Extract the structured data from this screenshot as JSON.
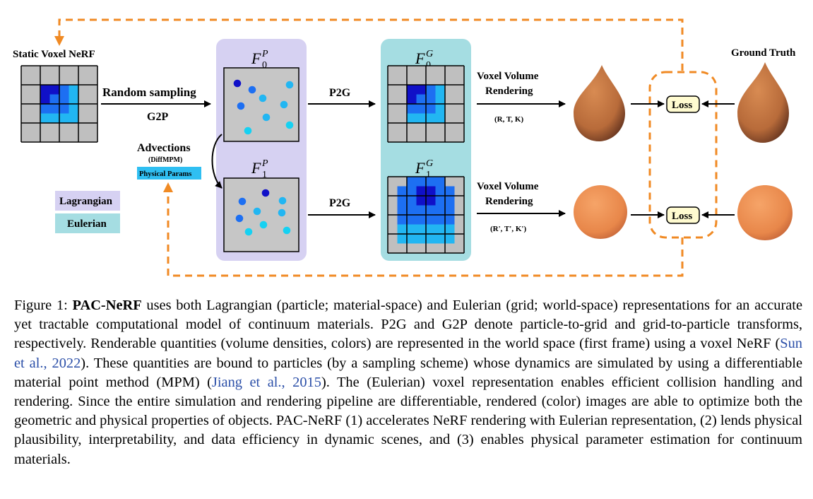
{
  "figure": {
    "static_voxel_title": "Static Voxel NeRF",
    "random_sampling": "Random sampling",
    "g2p": "G2P",
    "advections": "Advections",
    "diffmpm": "(DiffMPM)",
    "physical_params": "Physical Params",
    "legend": {
      "lagrangian": "Lagrangian",
      "eulerian": "Eulerian"
    },
    "f0p": {
      "base": "F",
      "sup": "P",
      "sub": "0"
    },
    "f1p": {
      "base": "F",
      "sup": "P",
      "sub": "1"
    },
    "f0g": {
      "base": "F",
      "sup": "G",
      "sub": "0"
    },
    "f1g": {
      "base": "F",
      "sup": "G",
      "sub": "1"
    },
    "p2g_top": "P2G",
    "p2g_bottom": "P2G",
    "render_top": {
      "line1": "Voxel Volume",
      "line2": "Rendering",
      "params": "(R, T, K)"
    },
    "render_bottom": {
      "line1": "Voxel Volume",
      "line2": "Rendering",
      "params": "(R', T', K')"
    },
    "loss_top": "Loss",
    "loss_bottom": "Loss",
    "ground_truth": "Ground Truth",
    "colors": {
      "lagrangian_bg": "#d6d1f2",
      "eulerian_bg": "#a5dde2",
      "dashed_orange": "#f08a24",
      "grid_gray": "#bfbfbf",
      "blue_dark": "#1010c8",
      "blue_mid": "#1d6ff2",
      "blue_light": "#22b6f2",
      "particle_light": "#16d1f2",
      "loss_fill": "#fffbd0",
      "object_brown": "#b86b3a",
      "object_orange": "#e8874a"
    }
  },
  "caption": {
    "label": "Figure 1: ",
    "name": "PAC-NeRF",
    "t1": " uses both Lagrangian (particle; material-space) and Eulerian (grid; world-space) representations for an accurate yet tractable computational model of continuum materials. P2G and G2P denote particle-to-grid and grid-to-particle transforms, respectively. Renderable quantities (volume densities, colors) are represented in the world space (first frame) using a voxel NeRF (",
    "cite1": "Sun et al., 2022",
    "t2": "). These quantities are bound to particles (by a sampling scheme) whose dynamics are simulated by using a differentiable material point method (MPM) (",
    "cite2": "Jiang et al., 2015",
    "t3": "). The (Eulerian) voxel representation enables efficient collision handling and rendering. Since the entire simulation and rendering pipeline are differentiable, rendered (color) images are able to optimize both the geometric and physical properties of objects. PAC-NeRF (1) accelerates NeRF rendering with Eulerian representation, (2) lends physical plausibility, interpretability, and data efficiency in dynamic scenes, and (3) enables physical parameter estimation for continuum materials."
  }
}
